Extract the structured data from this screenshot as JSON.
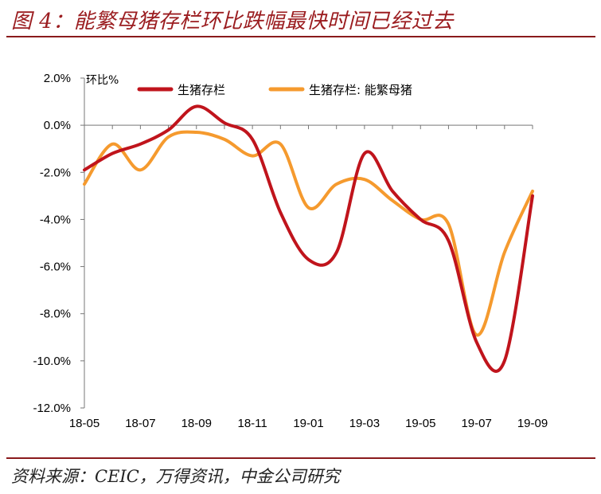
{
  "figure": {
    "title": "图 4：能繁母猪存栏环比跌幅最快时间已经过去",
    "source": "资料来源：CEIC，万得资讯，中金公司研究"
  },
  "chart_data": {
    "type": "line",
    "title": "",
    "unit_label": "环比%",
    "xlabel": "",
    "ylabel": "",
    "ylim": [
      -12,
      2
    ],
    "ytick_values": [
      2,
      0,
      -2,
      -4,
      -6,
      -8,
      -10,
      -12
    ],
    "ytick_labels": [
      "2.0%",
      "0.0%",
      "-2.0%",
      "-4.0%",
      "-6.0%",
      "-8.0%",
      "-10.0%",
      "-12.0%"
    ],
    "x": [
      "18-05",
      "18-06",
      "18-07",
      "18-08",
      "18-09",
      "18-10",
      "18-11",
      "18-12",
      "19-01",
      "19-02",
      "19-03",
      "19-04",
      "19-05",
      "19-06",
      "19-07",
      "19-08",
      "19-09"
    ],
    "xtick_labels": [
      "18-05",
      "18-07",
      "18-09",
      "18-11",
      "19-01",
      "19-03",
      "19-05",
      "19-07",
      "19-09"
    ],
    "grid": false,
    "legend_position": "top",
    "series": [
      {
        "name": "生猪存栏",
        "color": "#c0141c",
        "values": [
          -1.9,
          -1.2,
          -0.8,
          -0.2,
          0.8,
          0.1,
          -0.6,
          -3.7,
          -5.7,
          -5.4,
          -1.2,
          -2.8,
          -4.0,
          -4.9,
          -9.2,
          -10.0,
          -3.0
        ]
      },
      {
        "name": "生猪存栏: 能繁母猪",
        "color": "#f59a2e",
        "values": [
          -2.5,
          -0.8,
          -1.9,
          -0.5,
          -0.3,
          -0.6,
          -1.3,
          -0.8,
          -3.5,
          -2.5,
          -2.3,
          -3.2,
          -4.0,
          -4.2,
          -8.9,
          -5.4,
          -2.8
        ]
      }
    ]
  }
}
